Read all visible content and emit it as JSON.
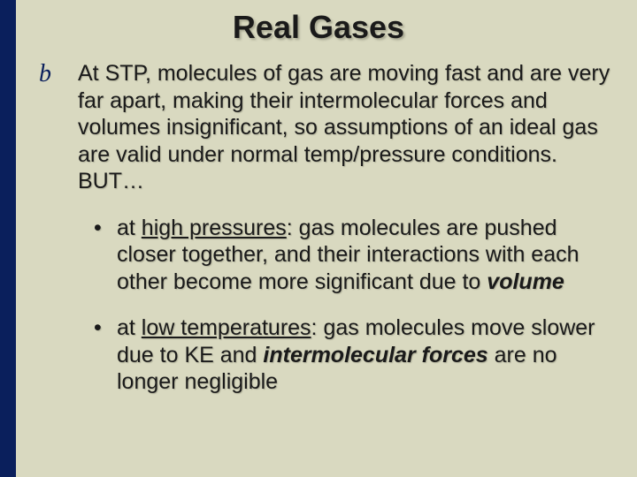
{
  "background_color": "#d9d9c0",
  "left_bar_color": "#0a1f5c",
  "text_color": "#1a1a1a",
  "title": "Real Gases",
  "title_fontsize": 36,
  "body_fontsize": 25,
  "bullet1_glyph": "b",
  "bullet2_glyph": "•",
  "p1": "At STP, molecules of gas are moving fast and are very far apart, making their intermolecular forces and volumes insignificant, so assumptions of an ideal gas are valid under normal temp/pressure conditions. BUT…",
  "p2_a": "at ",
  "p2_b": "high pressures",
  "p2_c": ": gas molecules are pushed closer together, and their interactions with each other become more significant due to ",
  "p2_d": "volume",
  "p3_a": "at ",
  "p3_b": "low temperatures",
  "p3_c": ": gas molecules move slower due to KE and ",
  "p3_d": "intermolecular forces",
  "p3_e": " are no longer negligible"
}
